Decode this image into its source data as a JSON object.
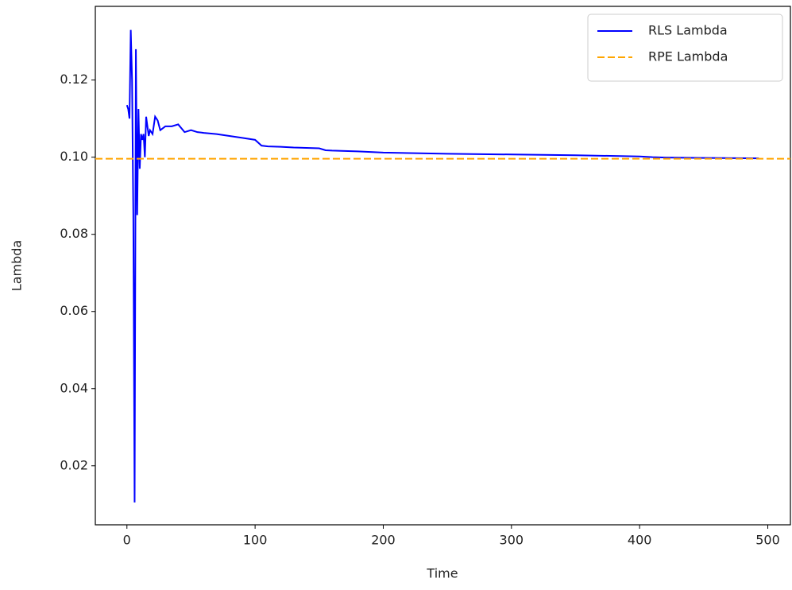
{
  "chart_data": {
    "type": "line",
    "xlabel": "Time",
    "ylabel": "Lambda",
    "x": [
      0,
      1,
      2,
      3,
      4,
      5,
      6,
      7,
      8,
      9,
      10,
      11,
      12,
      13,
      14,
      15,
      16,
      17,
      18,
      20,
      22,
      24,
      26,
      28,
      30,
      35,
      40,
      45,
      50,
      55,
      60,
      70,
      80,
      90,
      100,
      105,
      110,
      120,
      130,
      140,
      150,
      155,
      160,
      180,
      200,
      250,
      300,
      350,
      400,
      410,
      420,
      450,
      493
    ],
    "series": [
      {
        "name": "RLS Lambda",
        "color": "#0000ff",
        "values": [
          0.1135,
          0.1125,
          0.11,
          0.133,
          0.12,
          0.085,
          0.0105,
          0.128,
          0.085,
          0.1125,
          0.097,
          0.106,
          0.1045,
          0.106,
          0.1,
          0.1105,
          0.108,
          0.1055,
          0.107,
          0.106,
          0.1105,
          0.1095,
          0.107,
          0.1075,
          0.108,
          0.108,
          0.1085,
          0.1065,
          0.107,
          0.1065,
          0.1063,
          0.106,
          0.1055,
          0.105,
          0.1045,
          0.103,
          0.1028,
          0.1027,
          0.1025,
          0.1024,
          0.1023,
          0.1018,
          0.1017,
          0.1015,
          0.1012,
          0.1009,
          0.1007,
          0.1005,
          0.1002,
          0.1,
          0.0999,
          0.0998,
          0.0997
        ]
      },
      {
        "name": "RPE Lambda",
        "color": "#ffa500",
        "line_style": "dashed",
        "hline": 0.0996
      }
    ],
    "xlim": [
      -24.65,
      517.65
    ],
    "ylim": [
      0.0047,
      0.1391
    ],
    "xticks": [
      0,
      100,
      200,
      300,
      400,
      500
    ],
    "yticks": [
      0.02,
      0.04,
      0.06,
      0.08,
      {
        "value": 0.1,
        "label": "0.10"
      },
      0.12
    ],
    "legend": "upper right"
  }
}
